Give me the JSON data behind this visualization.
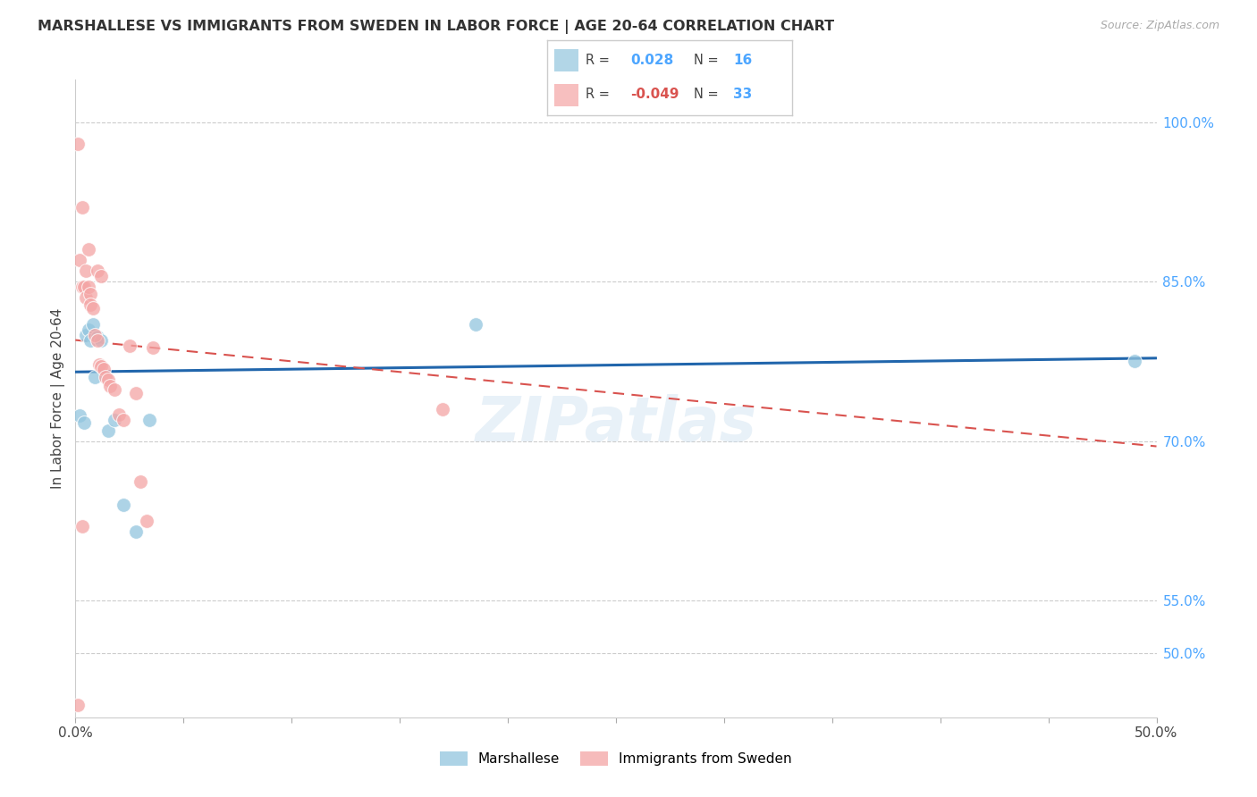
{
  "title": "MARSHALLESE VS IMMIGRANTS FROM SWEDEN IN LABOR FORCE | AGE 20-64 CORRELATION CHART",
  "source": "Source: ZipAtlas.com",
  "ylabel": "In Labor Force | Age 20-64",
  "xlim": [
    0.0,
    0.5
  ],
  "ylim": [
    0.44,
    1.04
  ],
  "xticks": [
    0.0,
    0.05,
    0.1,
    0.15,
    0.2,
    0.25,
    0.3,
    0.35,
    0.4,
    0.45,
    0.5
  ],
  "xticklabels": [
    "0.0%",
    "",
    "",
    "",
    "",
    "",
    "",
    "",
    "",
    "",
    "50.0%"
  ],
  "yticks_right": [
    0.5,
    0.55,
    0.7,
    0.85,
    1.0
  ],
  "yticklabels_right": [
    "50.0%",
    "55.0%",
    "70.0%",
    "85.0%",
    "100.0%"
  ],
  "blue_color": "#92c5de",
  "pink_color": "#f4a5a5",
  "blue_line_color": "#2166ac",
  "pink_line_color": "#d9534f",
  "legend_blue_r": "0.028",
  "legend_blue_n": "16",
  "legend_pink_r": "-0.049",
  "legend_pink_n": "33",
  "watermark": "ZIPatlas",
  "blue_scatter_x": [
    0.002,
    0.004,
    0.005,
    0.006,
    0.007,
    0.008,
    0.009,
    0.01,
    0.012,
    0.015,
    0.018,
    0.022,
    0.028,
    0.034,
    0.185,
    0.49
  ],
  "blue_scatter_y": [
    0.724,
    0.717,
    0.8,
    0.805,
    0.795,
    0.81,
    0.76,
    0.798,
    0.795,
    0.71,
    0.72,
    0.64,
    0.615,
    0.72,
    0.81,
    0.775
  ],
  "pink_scatter_x": [
    0.001,
    0.002,
    0.003,
    0.004,
    0.005,
    0.005,
    0.006,
    0.007,
    0.007,
    0.008,
    0.009,
    0.01,
    0.011,
    0.012,
    0.013,
    0.014,
    0.015,
    0.016,
    0.018,
    0.02,
    0.022,
    0.025,
    0.028,
    0.03,
    0.033,
    0.036,
    0.003,
    0.006,
    0.01,
    0.012,
    0.17,
    0.003,
    0.001
  ],
  "pink_scatter_y": [
    0.98,
    0.87,
    0.845,
    0.845,
    0.86,
    0.835,
    0.845,
    0.838,
    0.828,
    0.825,
    0.8,
    0.795,
    0.772,
    0.77,
    0.768,
    0.76,
    0.758,
    0.752,
    0.748,
    0.725,
    0.72,
    0.79,
    0.745,
    0.662,
    0.625,
    0.788,
    0.92,
    0.88,
    0.86,
    0.855,
    0.73,
    0.62,
    0.452
  ],
  "blue_trend_x": [
    0.0,
    0.5
  ],
  "blue_trend_y": [
    0.765,
    0.778
  ],
  "pink_trend_x": [
    0.0,
    0.5
  ],
  "pink_trend_y": [
    0.795,
    0.695
  ]
}
